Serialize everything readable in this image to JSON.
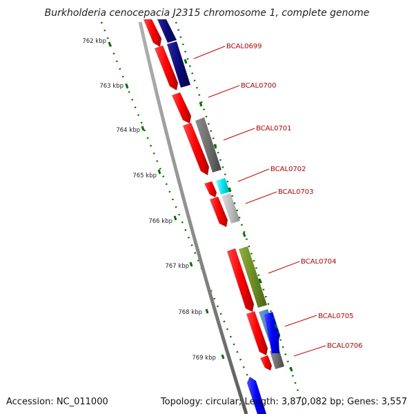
{
  "title": "Burkholderia cenocepacia J2315 chromosome 1, complete genome",
  "footer": {
    "accession": "Accession: NC_011000",
    "summary": "Topology: circular; Length: 3,870,082 bp; Genes: 3,557"
  },
  "ticks": [
    "762 kbp",
    "763 kbp",
    "764 kbp",
    "765 kbp",
    "766 kbp",
    "767 kbp",
    "768 kbp",
    "769 kbp"
  ],
  "gene_labels": [
    "BCAL0699",
    "BCAL0700",
    "BCAL0701",
    "BCAL0702",
    "BCAL0703",
    "BCAL0704",
    "BCAL0705",
    "BCAL0706"
  ],
  "colors": {
    "forward_strand": "#ff0000",
    "cog_navy": "#0a0a7a",
    "cog_gray": "#6e6e6e",
    "cog_cyan": "#00e5ee",
    "cog_lightgray": "#bdbdbd",
    "cog_olive": "#6b8e23",
    "cog_steelblue": "#4682b4",
    "cog_blue": "#0000ff",
    "backbone": "#8c8c8c",
    "tick": "#007000",
    "label": "#cc0000"
  }
}
